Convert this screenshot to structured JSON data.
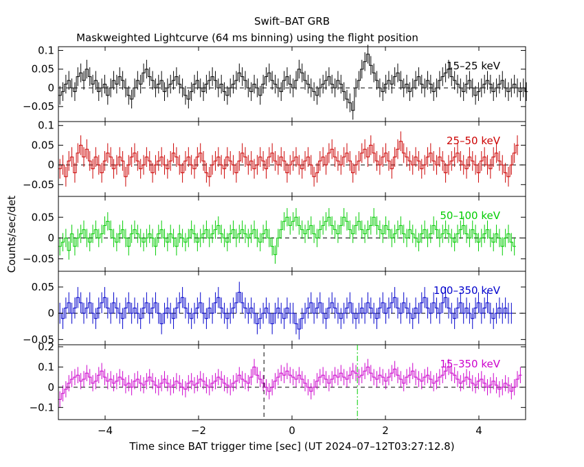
{
  "chart_data": {
    "type": "line",
    "title": "Swift–BAT GRB",
    "subtitle": "Maskweighted Lightcurve (64 ms binning) using the flight position",
    "xlabel": "Time since BAT trigger time [sec] (UT 2024–07–12T03:27:12.8)",
    "ylabel": "Counts/sec/det",
    "xlim": [
      -5.0,
      5.0
    ],
    "x_ticks": [
      -4,
      -2,
      0,
      2,
      4
    ],
    "x_tick_labels": [
      "−4",
      "−2",
      "0",
      "2",
      "4"
    ],
    "bin_width_sec": 0.064,
    "reference_lines": {
      "dashed_x": [
        -0.6
      ],
      "dashdot_x": [
        1.4
      ]
    },
    "panels": [
      {
        "name": "15–25 keV",
        "color": "#000000",
        "ylim": [
          -0.09,
          0.11
        ],
        "y_ticks": [
          -0.05,
          0,
          0.05,
          0.1
        ],
        "y_tick_labels": [
          "−0.05",
          "0",
          "0.05",
          "0.1"
        ],
        "series_start": -5.0,
        "values": [
          -0.02,
          -0.01,
          0.01,
          0.02,
          0.0,
          -0.01,
          0.03,
          0.04,
          0.02,
          0.05,
          0.03,
          0.01,
          0.02,
          -0.01,
          0.0,
          0.01,
          -0.02,
          0.0,
          0.02,
          0.01,
          0.03,
          0.02,
          0.0,
          -0.02,
          -0.03,
          0.0,
          0.02,
          0.01,
          0.04,
          0.05,
          0.03,
          0.02,
          0.0,
          0.01,
          0.02,
          -0.01,
          0.0,
          0.01,
          0.02,
          0.03,
          0.01,
          0.0,
          -0.02,
          -0.03,
          -0.01,
          0.01,
          0.02,
          0.0,
          -0.01,
          0.01,
          0.02,
          0.03,
          0.02,
          0.0,
          0.01,
          -0.01,
          -0.02,
          0.0,
          0.01,
          0.02,
          0.04,
          0.03,
          0.02,
          0.0,
          -0.01,
          0.01,
          0.0,
          -0.02,
          0.01,
          0.03,
          0.04,
          0.02,
          0.01,
          0.0,
          -0.01,
          0.02,
          0.03,
          0.01,
          0.0,
          0.02,
          0.05,
          0.04,
          0.02,
          0.01,
          0.0,
          -0.01,
          -0.02,
          0.0,
          0.01,
          0.02,
          0.03,
          0.01,
          0.0,
          0.02,
          0.01,
          -0.01,
          -0.03,
          -0.04,
          -0.06,
          0.0,
          0.02,
          0.05,
          0.07,
          0.09,
          0.06,
          0.04,
          0.02,
          0.0,
          -0.01,
          0.01,
          0.02,
          0.01,
          0.03,
          0.04,
          0.02,
          0.0,
          0.01,
          -0.01,
          0.0,
          0.02,
          0.03,
          0.01,
          0.0,
          0.02,
          0.01,
          -0.01,
          0.0,
          0.02,
          0.03,
          0.04,
          0.05,
          0.03,
          0.02,
          0.01,
          0.0,
          -0.01,
          0.01,
          0.02,
          0.0,
          -0.02,
          -0.01,
          0.0,
          0.01,
          0.02,
          0.01,
          -0.01,
          0.0,
          0.01,
          0.02,
          0.0,
          -0.01,
          0.0,
          0.01,
          0.0,
          -0.01,
          0.0,
          -0.01
        ],
        "errors": 0.025
      },
      {
        "name": "25–50 keV",
        "color": "#cc0000",
        "ylim": [
          -0.08,
          0.11
        ],
        "y_ticks": [
          -0.05,
          0,
          0.05,
          0.1
        ],
        "y_tick_labels": [
          "−0.05",
          "0",
          "0.05",
          "0.1"
        ],
        "series_start": -5.0,
        "values": [
          -0.01,
          0.0,
          -0.03,
          0.01,
          0.02,
          -0.02,
          0.03,
          0.05,
          0.02,
          0.04,
          0.01,
          -0.01,
          0.02,
          0.0,
          -0.02,
          0.01,
          0.03,
          0.02,
          -0.01,
          0.0,
          0.02,
          0.01,
          -0.03,
          0.0,
          0.02,
          0.03,
          0.01,
          -0.01,
          0.0,
          0.02,
          0.01,
          -0.02,
          0.0,
          0.01,
          0.02,
          0.0,
          -0.01,
          0.01,
          0.03,
          0.02,
          0.0,
          -0.02,
          0.01,
          0.02,
          0.0,
          -0.01,
          0.02,
          0.03,
          0.01,
          -0.02,
          -0.03,
          0.0,
          0.01,
          0.02,
          0.0,
          -0.01,
          0.02,
          0.01,
          0.0,
          -0.02,
          0.01,
          0.03,
          0.02,
          0.0,
          0.01,
          -0.01,
          0.0,
          0.02,
          0.01,
          -0.01,
          0.02,
          0.03,
          0.01,
          0.0,
          0.02,
          0.01,
          -0.02,
          0.0,
          0.01,
          0.02,
          0.0,
          -0.01,
          0.01,
          0.02,
          0.0,
          -0.03,
          -0.02,
          0.01,
          0.02,
          0.0,
          0.03,
          0.04,
          0.02,
          0.01,
          0.0,
          0.02,
          0.03,
          0.01,
          -0.02,
          0.0,
          0.01,
          0.03,
          0.04,
          0.02,
          0.05,
          0.03,
          0.01,
          0.0,
          0.02,
          0.03,
          0.01,
          -0.01,
          0.02,
          0.04,
          0.06,
          0.03,
          0.02,
          0.01,
          0.0,
          0.02,
          0.01,
          -0.01,
          0.0,
          0.02,
          0.03,
          0.01,
          0.0,
          0.02,
          0.01,
          -0.02,
          0.0,
          0.01,
          0.02,
          0.03,
          0.01,
          0.0,
          -0.01,
          0.02,
          0.01,
          0.0,
          -0.02,
          0.01,
          0.02,
          0.0,
          -0.01,
          0.02,
          0.03,
          0.01,
          0.0,
          -0.02,
          -0.03,
          0.0,
          0.03,
          0.05
        ],
        "errors": 0.025
      },
      {
        "name": "50–100 keV",
        "color": "#00cc00",
        "ylim": [
          -0.08,
          0.1
        ],
        "y_ticks": [
          -0.05,
          0,
          0.05
        ],
        "y_tick_labels": [
          "−0.05",
          "0",
          "0.05"
        ],
        "series_start": -5.0,
        "values": [
          -0.02,
          -0.01,
          0.0,
          -0.03,
          0.01,
          -0.02,
          0.0,
          0.01,
          0.02,
          0.0,
          -0.01,
          0.01,
          0.02,
          0.0,
          0.01,
          0.03,
          0.04,
          0.02,
          0.0,
          -0.01,
          0.01,
          0.02,
          0.0,
          -0.02,
          0.01,
          0.02,
          0.01,
          0.0,
          -0.01,
          0.0,
          0.01,
          0.0,
          -0.02,
          0.01,
          0.02,
          0.0,
          -0.01,
          0.01,
          0.0,
          -0.02,
          0.01,
          0.0,
          -0.01,
          0.0,
          0.02,
          0.01,
          -0.01,
          0.0,
          0.01,
          0.02,
          0.0,
          0.01,
          0.02,
          0.03,
          0.01,
          0.0,
          -0.01,
          0.01,
          0.02,
          0.0,
          0.01,
          0.02,
          0.01,
          0.0,
          0.01,
          0.02,
          0.0,
          -0.01,
          0.01,
          0.02,
          0.0,
          -0.02,
          -0.04,
          0.0,
          0.02,
          0.04,
          0.05,
          0.03,
          0.04,
          0.05,
          0.03,
          0.02,
          0.01,
          0.02,
          0.03,
          0.01,
          0.0,
          0.02,
          0.03,
          0.04,
          0.05,
          0.03,
          0.02,
          0.01,
          0.03,
          0.05,
          0.04,
          0.02,
          0.01,
          0.03,
          0.04,
          0.02,
          0.01,
          0.02,
          0.03,
          0.05,
          0.03,
          0.02,
          0.01,
          0.03,
          0.02,
          0.0,
          0.01,
          0.02,
          0.03,
          0.01,
          0.0,
          0.02,
          0.01,
          0.0,
          -0.01,
          0.01,
          0.02,
          0.0,
          0.01,
          0.03,
          0.02,
          0.0,
          0.01,
          0.02,
          0.01,
          0.0,
          -0.01,
          0.01,
          0.02,
          0.03,
          0.01,
          0.0,
          0.02,
          0.01,
          -0.01,
          0.0,
          0.01,
          0.02,
          0.0,
          -0.01,
          0.01,
          0.0,
          -0.02,
          0.0,
          0.01,
          -0.01,
          -0.02
        ],
        "errors": 0.022
      },
      {
        "name": "100–350 keV",
        "color": "#0000cc",
        "ylim": [
          -0.06,
          0.08
        ],
        "y_ticks": [
          -0.05,
          0,
          0.05
        ],
        "y_tick_labels": [
          "−0.05",
          "0",
          "0.05"
        ],
        "series_start": -5.0,
        "values": [
          0.0,
          -0.01,
          0.01,
          0.02,
          0.0,
          0.01,
          0.03,
          0.02,
          0.0,
          0.01,
          0.02,
          0.0,
          -0.01,
          0.01,
          0.02,
          0.03,
          0.01,
          0.0,
          0.02,
          0.01,
          0.0,
          -0.01,
          0.01,
          0.02,
          0.0,
          0.01,
          0.0,
          -0.01,
          0.01,
          0.02,
          0.0,
          0.01,
          0.02,
          0.0,
          -0.02,
          0.0,
          0.01,
          0.0,
          -0.01,
          0.01,
          0.02,
          0.03,
          0.01,
          0.0,
          -0.01,
          0.0,
          0.01,
          0.02,
          0.0,
          -0.01,
          0.01,
          0.0,
          0.02,
          0.03,
          0.01,
          0.0,
          -0.01,
          0.0,
          0.01,
          0.02,
          0.04,
          0.02,
          0.01,
          0.0,
          0.01,
          0.0,
          -0.02,
          -0.01,
          0.0,
          0.01,
          0.0,
          -0.02,
          0.0,
          0.01,
          0.0,
          -0.01,
          0.01,
          0.0,
          0.0,
          -0.02,
          -0.03,
          -0.01,
          0.0,
          0.01,
          0.02,
          0.0,
          0.01,
          0.02,
          0.0,
          -0.01,
          0.01,
          0.02,
          0.01,
          0.0,
          -0.01,
          0.0,
          0.01,
          0.02,
          0.0,
          -0.01,
          0.0,
          0.01,
          0.0,
          0.02,
          0.01,
          0.0,
          -0.01,
          0.01,
          0.02,
          0.0,
          0.01,
          0.02,
          0.03,
          0.01,
          0.0,
          0.02,
          0.01,
          0.0,
          -0.01,
          0.01,
          0.0,
          0.02,
          0.03,
          0.01,
          0.0,
          0.02,
          0.01,
          0.0,
          0.02,
          0.03,
          0.01,
          0.0,
          -0.01,
          0.01,
          0.02,
          0.0,
          0.01,
          0.0,
          -0.01,
          0.01,
          0.02,
          0.0,
          0.01,
          0.02,
          0.0,
          -0.01,
          0.0,
          0.01,
          0.0,
          0.01,
          0.0,
          0.0
        ],
        "errors": 0.02
      },
      {
        "name": "15–350 keV",
        "color": "#cc00cc",
        "ylim": [
          -0.16,
          0.21
        ],
        "y_ticks": [
          -0.1,
          0,
          0.1,
          0.2
        ],
        "y_tick_labels": [
          "−0.1",
          "0",
          "0.1",
          "0.2"
        ],
        "series_start": -5.0,
        "values": [
          -0.06,
          -0.03,
          -0.01,
          0.02,
          0.04,
          0.05,
          0.06,
          0.03,
          0.04,
          0.07,
          0.05,
          0.02,
          0.03,
          0.06,
          0.08,
          0.05,
          0.03,
          0.04,
          0.02,
          0.03,
          0.05,
          0.04,
          0.01,
          0.02,
          0.0,
          0.03,
          0.04,
          0.02,
          0.01,
          0.03,
          0.05,
          0.03,
          0.01,
          0.0,
          0.02,
          0.04,
          0.02,
          0.0,
          0.01,
          0.03,
          0.02,
          0.0,
          -0.01,
          0.02,
          0.03,
          0.01,
          0.02,
          0.04,
          0.03,
          0.01,
          0.0,
          0.02,
          0.03,
          0.05,
          0.04,
          0.02,
          0.01,
          0.0,
          0.02,
          0.03,
          0.06,
          0.04,
          0.03,
          0.02,
          0.05,
          0.1,
          0.06,
          0.04,
          0.02,
          0.0,
          -0.02,
          0.0,
          0.03,
          0.05,
          0.07,
          0.06,
          0.08,
          0.06,
          0.05,
          0.04,
          0.06,
          0.04,
          0.02,
          0.0,
          -0.02,
          0.0,
          0.03,
          0.05,
          0.06,
          0.04,
          0.02,
          0.04,
          0.06,
          0.05,
          0.07,
          0.05,
          0.04,
          0.06,
          0.08,
          0.07,
          0.05,
          0.06,
          0.08,
          0.1,
          0.07,
          0.05,
          0.04,
          0.06,
          0.05,
          0.03,
          0.05,
          0.07,
          0.09,
          0.06,
          0.04,
          0.02,
          0.05,
          0.06,
          0.08,
          0.05,
          0.04,
          0.03,
          0.05,
          0.06,
          0.04,
          0.02,
          0.03,
          0.05,
          0.06,
          0.08,
          0.1,
          0.07,
          0.06,
          0.04,
          0.02,
          0.03,
          0.05,
          0.04,
          0.02,
          0.01,
          0.03,
          0.04,
          0.02,
          0.0,
          0.01,
          0.03,
          0.01,
          -0.01,
          0.0,
          0.02,
          0.01,
          -0.02,
          0.0,
          0.04,
          0.06
        ],
        "errors": 0.04
      }
    ]
  }
}
